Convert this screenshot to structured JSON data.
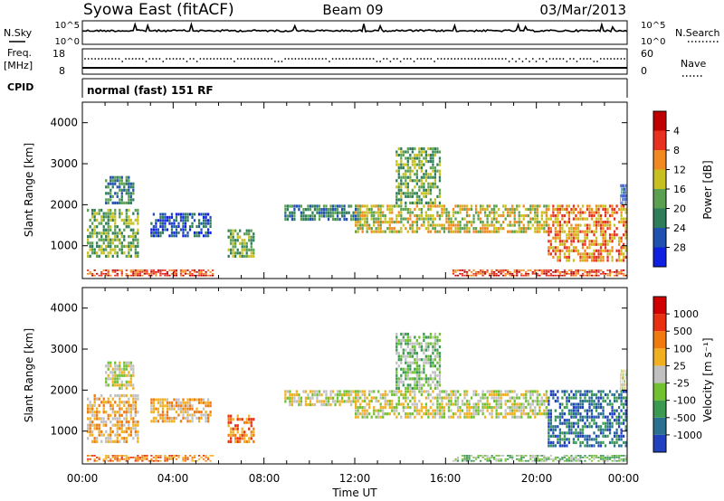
{
  "header": {
    "station": "Syowa East (fitACF)",
    "beam": "Beam 09",
    "date": "03/Mar/2013"
  },
  "noise_panel": {
    "left_label": "N.Sky",
    "left_ticks": [
      "10^5",
      "10^0"
    ],
    "right_label": "N.Search",
    "right_ticks": [
      "10^5",
      "10^0"
    ]
  },
  "freq_panel": {
    "left_label_1": "Freq.",
    "left_label_2": "[MHz]",
    "left_ticks": [
      "18",
      "8"
    ],
    "right_label": "Nave",
    "right_ticks": [
      "60",
      "0"
    ]
  },
  "cpid": {
    "label": "CPID",
    "mode_text": "normal (fast) 151 RF"
  },
  "x_axis": {
    "ticks": [
      "00:00",
      "04:00",
      "08:00",
      "12:00",
      "16:00",
      "20:00",
      "00:00"
    ],
    "label": "Time UT"
  },
  "chart_data": [
    {
      "type": "heatmap",
      "name": "power",
      "ylabel": "Slant Range [km]",
      "y_ticks": [
        "1000",
        "2000",
        "3000",
        "4000"
      ],
      "ylim": [
        200,
        4500
      ],
      "xlim_hours": [
        0,
        24
      ],
      "colorbar": {
        "label": "Power [dB]",
        "ticks": [
          "4",
          "8",
          "12",
          "16",
          "20",
          "24",
          "28"
        ],
        "colors": [
          "#1020e0",
          "#2050b0",
          "#2e7d5a",
          "#5aa050",
          "#c8c020",
          "#f08a20",
          "#e83020",
          "#c00000"
        ]
      },
      "echo_regions": [
        {
          "t_start": 0.2,
          "t_end": 5.8,
          "r_start": 250,
          "r_end": 420,
          "level": 6
        },
        {
          "t_start": 0.2,
          "t_end": 2.5,
          "r_start": 700,
          "r_end": 1900,
          "level": 3
        },
        {
          "t_start": 1.0,
          "t_end": 2.3,
          "r_start": 2000,
          "r_end": 2700,
          "level": 2
        },
        {
          "t_start": 3.0,
          "t_end": 5.7,
          "r_start": 1200,
          "r_end": 1800,
          "level": 1
        },
        {
          "t_start": 6.4,
          "t_end": 7.6,
          "r_start": 700,
          "r_end": 1400,
          "level": 3
        },
        {
          "t_start": 8.9,
          "t_end": 12.2,
          "r_start": 1600,
          "r_end": 2000,
          "level": 2
        },
        {
          "t_start": 12.0,
          "t_end": 16.0,
          "r_start": 1300,
          "r_end": 2000,
          "level": 4
        },
        {
          "t_start": 13.8,
          "t_end": 15.8,
          "r_start": 2000,
          "r_end": 3400,
          "level": 3
        },
        {
          "t_start": 16.0,
          "t_end": 20.5,
          "r_start": 1300,
          "r_end": 2000,
          "level": 4
        },
        {
          "t_start": 16.3,
          "t_end": 24.0,
          "r_start": 250,
          "r_end": 420,
          "level": 6
        },
        {
          "t_start": 20.5,
          "t_end": 24.0,
          "r_start": 600,
          "r_end": 2000,
          "level": 5
        },
        {
          "t_start": 23.7,
          "t_end": 24.0,
          "r_start": 2000,
          "r_end": 2500,
          "level": 1
        }
      ]
    },
    {
      "type": "heatmap",
      "name": "velocity",
      "ylabel": "Slant Range [km]",
      "y_ticks": [
        "1000",
        "2000",
        "3000",
        "4000"
      ],
      "ylim": [
        200,
        4500
      ],
      "xlim_hours": [
        0,
        24
      ],
      "colorbar": {
        "label": "Velocity [m s⁻¹]",
        "ticks": [
          "1000",
          "500",
          "100",
          "25",
          "-25",
          "-100",
          "-500",
          "-1000"
        ],
        "colors": [
          "#2040c0",
          "#2a7090",
          "#3a9a50",
          "#70c030",
          "#c0c0c0",
          "#f0b020",
          "#f07a10",
          "#e83010",
          "#d00000"
        ]
      },
      "echo_regions": [
        {
          "t_start": 0.2,
          "t_end": 5.8,
          "r_start": 250,
          "r_end": 420,
          "level": 6
        },
        {
          "t_start": 0.2,
          "t_end": 2.5,
          "r_start": 700,
          "r_end": 1900,
          "level": 5
        },
        {
          "t_start": 1.0,
          "t_end": 2.3,
          "r_start": 2000,
          "r_end": 2700,
          "level": 4
        },
        {
          "t_start": 3.0,
          "t_end": 5.7,
          "r_start": 1200,
          "r_end": 1800,
          "level": 5
        },
        {
          "t_start": 6.4,
          "t_end": 7.6,
          "r_start": 700,
          "r_end": 1400,
          "level": 6
        },
        {
          "t_start": 8.9,
          "t_end": 12.2,
          "r_start": 1600,
          "r_end": 2000,
          "level": 4
        },
        {
          "t_start": 12.0,
          "t_end": 16.0,
          "r_start": 1300,
          "r_end": 2000,
          "level": 4
        },
        {
          "t_start": 13.8,
          "t_end": 15.8,
          "r_start": 2000,
          "r_end": 3400,
          "level": 3
        },
        {
          "t_start": 16.0,
          "t_end": 20.5,
          "r_start": 1300,
          "r_end": 2000,
          "level": 4
        },
        {
          "t_start": 16.3,
          "t_end": 24.0,
          "r_start": 250,
          "r_end": 420,
          "level": 3
        },
        {
          "t_start": 20.5,
          "t_end": 24.0,
          "r_start": 600,
          "r_end": 2000,
          "level": 1
        },
        {
          "t_start": 23.7,
          "t_end": 24.0,
          "r_start": 2000,
          "r_end": 2500,
          "level": 4
        }
      ]
    }
  ]
}
